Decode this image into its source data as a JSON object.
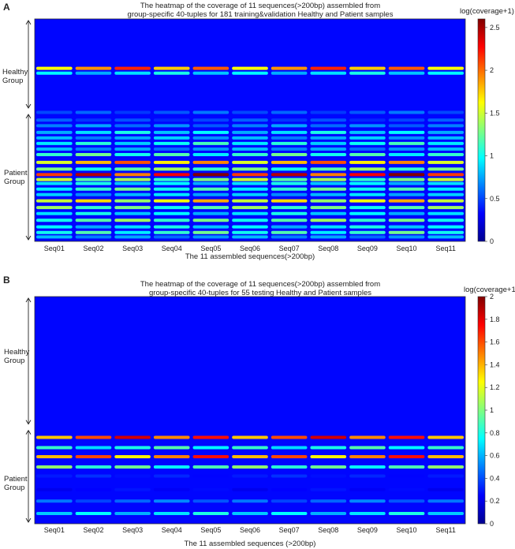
{
  "chart_data": [
    {
      "panel": "A",
      "type": "heatmap",
      "title_line1": "The heatmap of the coverage of 11 sequences(>200bp) assembled from",
      "title_line2": "group-specific 40-tuples for 181 training&validation Healthy and Patient samples",
      "xlabel": "The 11 assembled sequences(>200bp)",
      "colorbar_title": "log(coverage+1)",
      "colorbar_range": [
        0,
        2.6
      ],
      "colorbar_ticks": [
        "0",
        "0.5",
        "1",
        "1.5",
        "2",
        "2.5"
      ],
      "categories": [
        "Seq01",
        "Seq02",
        "Seq03",
        "Seq04",
        "Seq05",
        "Seq06",
        "Seq07",
        "Seq08",
        "Seq09",
        "Seq10",
        "Seq11"
      ],
      "groups": [
        {
          "label_line1": "Healthy",
          "label_line2": "Group"
        },
        {
          "label_line1": "Patient",
          "label_line2": "Group"
        }
      ],
      "group_split_fraction": 0.415,
      "row_bands": [
        {
          "pos": 0.222,
          "value": 1.9
        },
        {
          "pos": 0.244,
          "value": 0.9
        },
        {
          "pos": 0.42,
          "value": 0.55
        },
        {
          "pos": 0.455,
          "value": 0.5
        },
        {
          "pos": 0.48,
          "value": 0.65
        },
        {
          "pos": 0.51,
          "value": 0.9
        },
        {
          "pos": 0.535,
          "value": 0.75
        },
        {
          "pos": 0.56,
          "value": 1.0
        },
        {
          "pos": 0.585,
          "value": 0.7
        },
        {
          "pos": 0.61,
          "value": 1.1
        },
        {
          "pos": 0.645,
          "value": 1.8
        },
        {
          "pos": 0.675,
          "value": 1.2
        },
        {
          "pos": 0.7,
          "value": 2.3
        },
        {
          "pos": 0.722,
          "value": 1.3
        },
        {
          "pos": 0.74,
          "value": 0.9
        },
        {
          "pos": 0.765,
          "value": 1.1
        },
        {
          "pos": 0.79,
          "value": 0.8
        },
        {
          "pos": 0.818,
          "value": 1.6
        },
        {
          "pos": 0.848,
          "value": 1.2
        },
        {
          "pos": 0.875,
          "value": 0.9
        },
        {
          "pos": 0.905,
          "value": 1.2
        },
        {
          "pos": 0.935,
          "value": 0.9
        },
        {
          "pos": 0.96,
          "value": 1.1
        },
        {
          "pos": 0.98,
          "value": 0.7
        }
      ]
    },
    {
      "panel": "B",
      "type": "heatmap",
      "title_line1": "The heatmap of the coverage of 11 sequences(>200bp) assembled from",
      "title_line2": "group-specific 40-tuples for 55 testing Healthy and Patient samples",
      "xlabel": "The 11 assembled sequences (>200bp)",
      "colorbar_title": "log(coverage+1)",
      "colorbar_range": [
        0,
        2.0
      ],
      "colorbar_ticks": [
        "0",
        "0.2",
        "0.4",
        "0.6",
        "0.8",
        "1",
        "1.2",
        "1.4",
        "1.6",
        "1.8",
        "2"
      ],
      "categories": [
        "Seq01",
        "Seq02",
        "Seq03",
        "Seq04",
        "Seq05",
        "Seq06",
        "Seq07",
        "Seq08",
        "Seq09",
        "Seq10",
        "Seq11"
      ],
      "groups": [
        {
          "label_line1": "Healthy",
          "label_line2": "Group"
        },
        {
          "label_line1": "Patient",
          "label_line2": "Group"
        }
      ],
      "group_split_fraction": 0.575,
      "row_bands": [
        {
          "pos": 0.62,
          "value": 1.6
        },
        {
          "pos": 0.665,
          "value": 0.8
        },
        {
          "pos": 0.705,
          "value": 1.5
        },
        {
          "pos": 0.75,
          "value": 0.9
        },
        {
          "pos": 0.79,
          "value": 0.3
        },
        {
          "pos": 0.85,
          "value": 0.25
        },
        {
          "pos": 0.9,
          "value": 0.45
        },
        {
          "pos": 0.955,
          "value": 0.7
        }
      ]
    }
  ]
}
